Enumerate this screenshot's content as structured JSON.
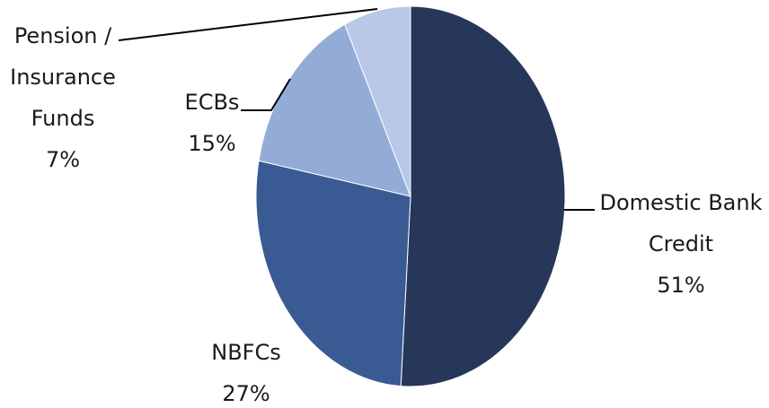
{
  "chart_data": {
    "type": "pie",
    "title": "",
    "start_angle_deg": 0,
    "direction": "clockwise",
    "slices": [
      {
        "label_lines": [
          "Domestic Bank",
          "Credit",
          "51%"
        ],
        "value": 51,
        "color": "#263759"
      },
      {
        "label_lines": [
          "NBFCs",
          "27%"
        ],
        "value": 27,
        "color": "#3a5a94"
      },
      {
        "label_lines": [
          "ECBs",
          "15%"
        ],
        "value": 15,
        "color": "#93acd7"
      },
      {
        "label_lines": [
          "Pension /",
          "Insurance",
          "Funds",
          "7%"
        ],
        "value": 7,
        "color": "#b8c8e6"
      }
    ]
  }
}
